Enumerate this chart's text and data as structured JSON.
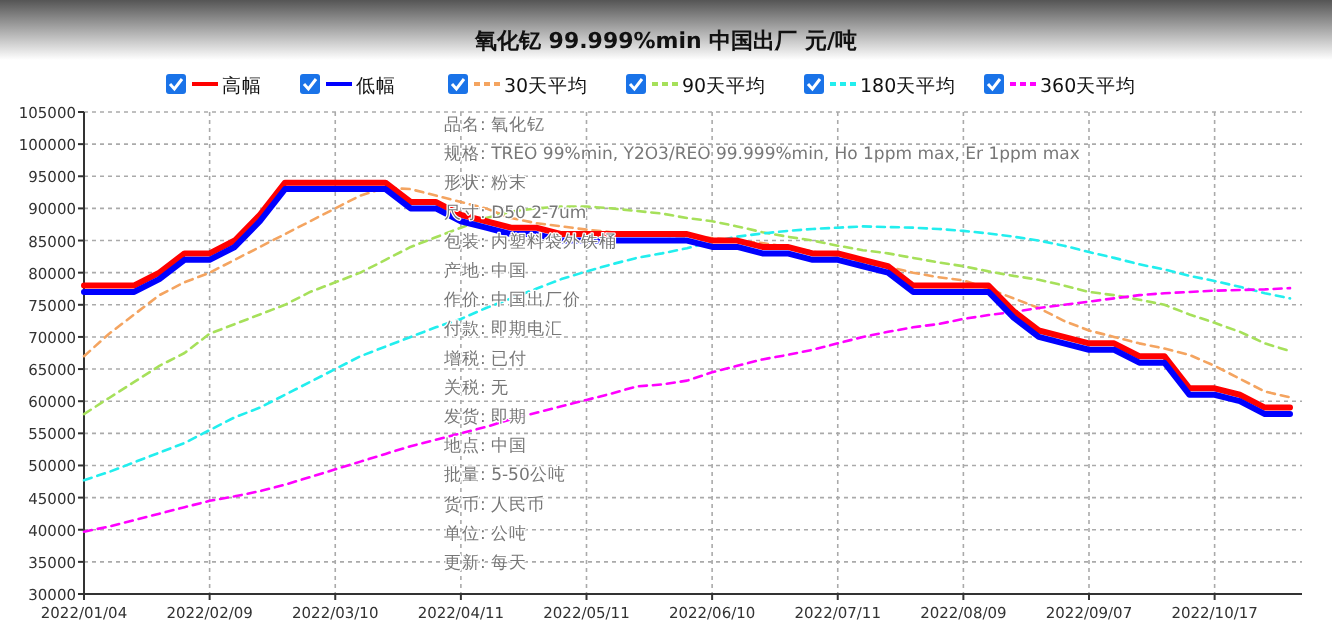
{
  "chart_data": {
    "type": "line",
    "title": "氧化钇 99.999%min 中国出厂 元/吨",
    "categories": [
      "2022/01/04",
      null,
      null,
      null,
      null,
      "2022/02/09",
      null,
      null,
      null,
      null,
      "2022/03/10",
      null,
      null,
      null,
      null,
      "2022/04/11",
      null,
      null,
      null,
      null,
      "2022/05/11",
      null,
      null,
      null,
      null,
      "2022/06/10",
      null,
      null,
      null,
      null,
      "2022/07/11",
      null,
      null,
      null,
      null,
      "2022/08/09",
      null,
      null,
      null,
      null,
      "2022/09/07",
      null,
      null,
      null,
      null,
      "2022/10/17",
      null,
      null,
      null
    ],
    "series": [
      {
        "name": "高幅",
        "color": "#ff0000",
        "line_style": "solid",
        "values": [
          78000,
          78000,
          78000,
          80000,
          83000,
          83000,
          85000,
          89000,
          94000,
          94000,
          94000,
          94000,
          94000,
          91000,
          91000,
          89000,
          88000,
          87000,
          87000,
          86000,
          86000,
          86000,
          86000,
          86000,
          86000,
          85000,
          85000,
          84000,
          84000,
          83000,
          83000,
          82000,
          81000,
          78000,
          78000,
          78000,
          78000,
          74000,
          71000,
          70000,
          69000,
          69000,
          67000,
          67000,
          62000,
          62000,
          61000,
          59000,
          59000
        ]
      },
      {
        "name": "低幅",
        "color": "#0000ff",
        "line_style": "solid",
        "values": [
          77000,
          77000,
          77000,
          79000,
          82000,
          82000,
          84000,
          88000,
          93000,
          93000,
          93000,
          93000,
          93000,
          90000,
          90000,
          88000,
          87000,
          86000,
          86000,
          85000,
          85000,
          85000,
          85000,
          85000,
          85000,
          84000,
          84000,
          83000,
          83000,
          82000,
          82000,
          81000,
          80000,
          77000,
          77000,
          77000,
          77000,
          73000,
          70000,
          69000,
          68000,
          68000,
          66000,
          66000,
          61000,
          61000,
          60000,
          58000,
          58000
        ]
      },
      {
        "name": "30天平均",
        "color": "#f4a460",
        "line_style": "dashed",
        "values": [
          67000,
          70500,
          73500,
          76500,
          78500,
          80000,
          82000,
          84000,
          86000,
          88000,
          90000,
          92000,
          93200,
          93000,
          92000,
          91000,
          90000,
          88500,
          87700,
          87200,
          86700,
          86300,
          86000,
          85800,
          85600,
          85400,
          85000,
          84600,
          84000,
          83300,
          82600,
          81600,
          80900,
          80000,
          79300,
          78800,
          77500,
          76000,
          74500,
          72500,
          71000,
          70000,
          69000,
          68200,
          67200,
          65500,
          63500,
          61500,
          60600
        ]
      },
      {
        "name": "90天平均",
        "color": "#a6e05a",
        "line_style": "dashed",
        "values": [
          58000,
          60500,
          63000,
          65500,
          67500,
          70500,
          72000,
          73500,
          75000,
          77000,
          78500,
          80000,
          82000,
          84000,
          85500,
          87000,
          88500,
          89500,
          90000,
          90300,
          90300,
          90000,
          89600,
          89200,
          88500,
          88000,
          87200,
          86300,
          85600,
          85000,
          84200,
          83500,
          83000,
          82300,
          81600,
          81000,
          80200,
          79500,
          78900,
          78000,
          77000,
          76500,
          75800,
          75000,
          73500,
          72200,
          70800,
          69000,
          67800
        ]
      },
      {
        "name": "180天平均",
        "color": "#22eeee",
        "line_style": "dashed",
        "values": [
          47700,
          49000,
          50500,
          52000,
          53500,
          55500,
          57500,
          59000,
          61000,
          63000,
          65000,
          67000,
          68500,
          70000,
          71500,
          72800,
          74500,
          76000,
          77500,
          79000,
          80200,
          81300,
          82300,
          83000,
          83800,
          84800,
          85600,
          86100,
          86500,
          86800,
          87000,
          87200,
          87100,
          87000,
          86800,
          86500,
          86100,
          85600,
          85000,
          84200,
          83200,
          82300,
          81300,
          80500,
          79500,
          78700,
          77800,
          76800,
          76000
        ]
      },
      {
        "name": "360天平均",
        "color": "#ff00ff",
        "line_style": "dashed",
        "values": [
          39700,
          40500,
          41500,
          42500,
          43500,
          44500,
          45200,
          46000,
          47000,
          48200,
          49400,
          50600,
          51800,
          53000,
          54000,
          55000,
          56000,
          57200,
          58200,
          59200,
          60200,
          61200,
          62300,
          62600,
          63200,
          64500,
          65500,
          66500,
          67200,
          68000,
          69000,
          70000,
          70800,
          71500,
          72000,
          72800,
          73400,
          73900,
          74500,
          75000,
          75500,
          76000,
          76500,
          76800,
          77000,
          77200,
          77300,
          77400,
          77600
        ]
      }
    ],
    "ylim": [
      30000,
      105000
    ],
    "yticks": [
      30000,
      35000,
      40000,
      45000,
      50000,
      55000,
      60000,
      65000,
      70000,
      75000,
      80000,
      85000,
      90000,
      95000,
      100000,
      105000
    ],
    "grid": true,
    "legend": "top",
    "annotations": [
      "品名:  氧化钇",
      "规格:  TREO 99%min, Y2O3/REO 99.999%min, Ho 1ppm max, Er 1ppm max",
      "形状:  粉末",
      "尺寸:  D50 2-7um",
      "包装:  内塑料袋外铁桶",
      "产地:  中国",
      "作价:  中国出厂价",
      "付款:  即期电汇",
      "增税:  已付",
      "关税:  无",
      "发货:  即期",
      "地点:  中国",
      "批量:  5-50公吨",
      "货币:  人民币",
      "单位:  公吨",
      "更新:  每天"
    ]
  }
}
